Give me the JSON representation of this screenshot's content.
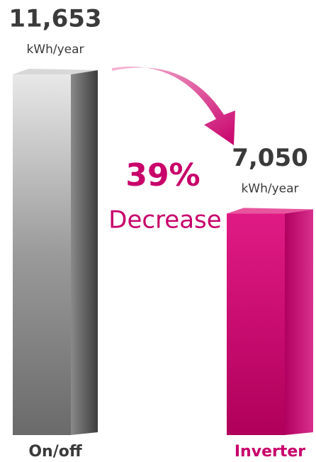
{
  "chart_data": {
    "type": "bar",
    "categories": [
      "On/off",
      "Inverter"
    ],
    "values": [
      11653,
      7050
    ],
    "value_labels": [
      "11,653",
      "7,050"
    ],
    "unit_label": "kWh/year",
    "colors": [
      "#8a8a8a",
      "#c8006a"
    ],
    "label_colors": [
      "#3a3a3a",
      "#c8006a"
    ],
    "annotation": [
      "39%",
      "Decrease"
    ]
  }
}
